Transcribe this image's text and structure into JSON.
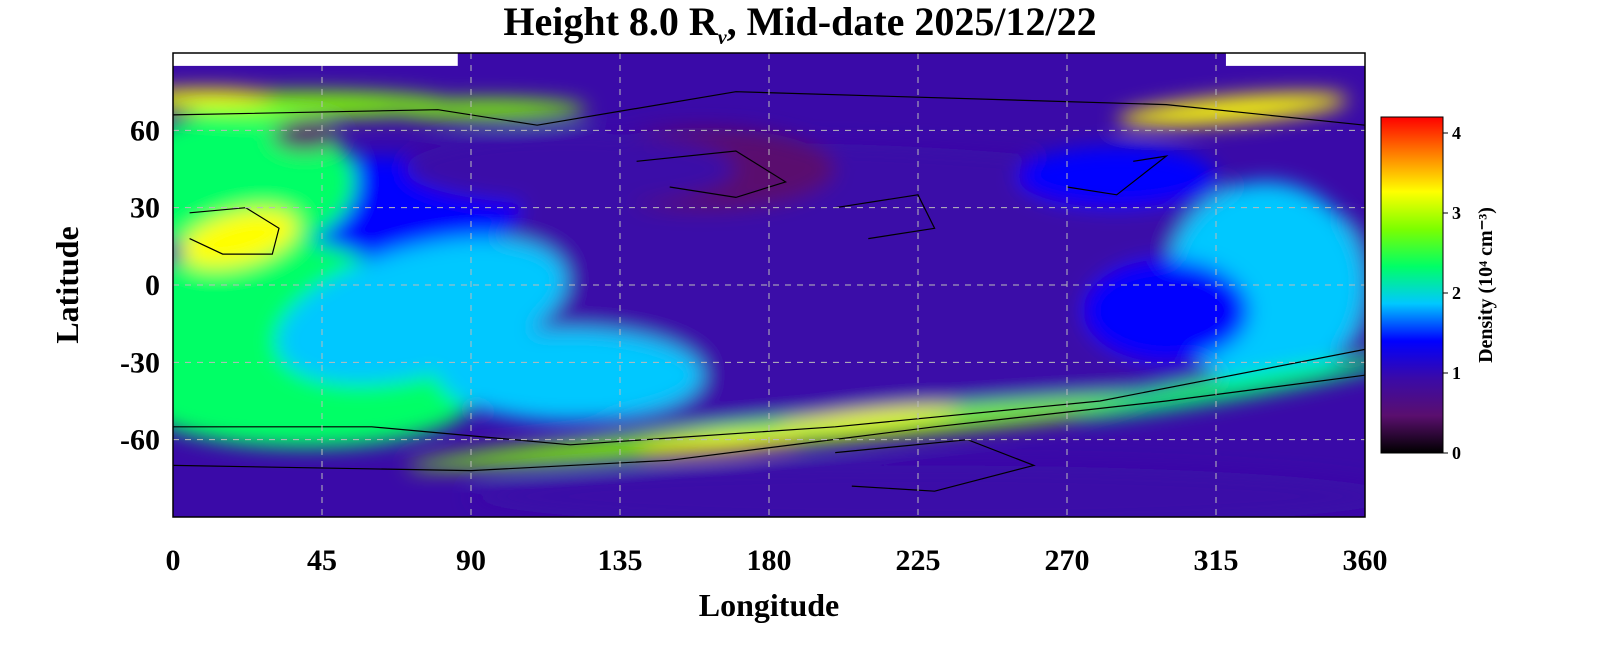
{
  "chart_data": {
    "type": "heatmap",
    "title_main": "Height 8.0 R",
    "title_sub": "ν",
    "title_rest": ", Mid-date 2025/12/22",
    "xlabel": "Longitude",
    "ylabel": "Latitude",
    "xlim": [
      0,
      360
    ],
    "ylim": [
      -90,
      90
    ],
    "x_ticks": [
      "0",
      "45",
      "90",
      "135",
      "180",
      "225",
      "270",
      "315",
      "360"
    ],
    "x_tick_values": [
      0,
      45,
      90,
      135,
      180,
      225,
      270,
      315,
      360
    ],
    "y_ticks": [
      "60",
      "30",
      "0",
      "-30",
      "-60"
    ],
    "y_tick_values": [
      60,
      30,
      0,
      -30,
      -60
    ],
    "grid": "dashed",
    "colorbar": {
      "label": "Density (10⁴ cm⁻³)",
      "ticks": [
        "0",
        "1",
        "2",
        "3",
        "4"
      ],
      "tick_values": [
        0,
        1,
        2,
        3,
        4
      ],
      "range": [
        0,
        4.2
      ],
      "placement": "right"
    },
    "colormap": [
      "#000000",
      "#5a0f6e",
      "#3a0aa8",
      "#0000ff",
      "#00c8ff",
      "#00ff66",
      "#7cff00",
      "#ffff00",
      "#ff8000",
      "#ff0000"
    ],
    "density_features": [
      {
        "feature": "bright belt south",
        "lon": 165,
        "lat": -62,
        "value": 3.4
      },
      {
        "feature": "bright belt south",
        "lon": 215,
        "lat": -52,
        "value": 3.3
      },
      {
        "feature": "bright band north-east",
        "lon": 315,
        "lat": 68,
        "value": 3.4
      },
      {
        "feature": "bright band north-west",
        "lon": 10,
        "lat": 72,
        "value": 3.2
      },
      {
        "feature": "maximum west",
        "lon": 20,
        "lat": 18,
        "value": 3.6
      },
      {
        "feature": "low south",
        "lon": 220,
        "lat": -75,
        "value": 0.4
      },
      {
        "feature": "low north",
        "lon": 160,
        "lat": 45,
        "value": 0.5
      },
      {
        "feature": "low centre",
        "lon": 215,
        "lat": 25,
        "value": 0.5
      }
    ]
  }
}
